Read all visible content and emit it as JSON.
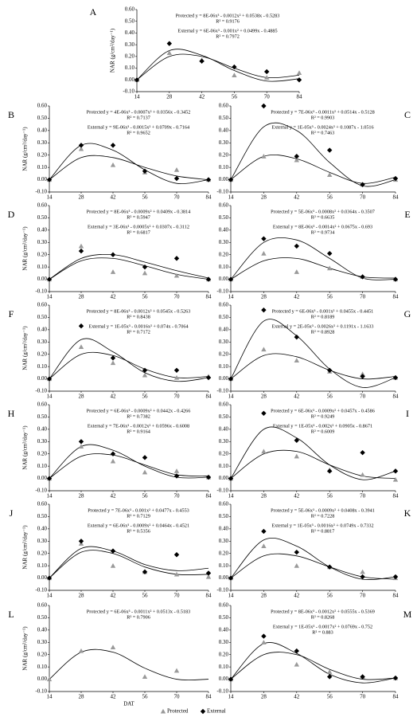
{
  "chart_data": {
    "type": "scatter",
    "y_label": "NAR (g/cm²/day⁻¹)",
    "x_label": "DAT",
    "xlim": [
      14,
      84
    ],
    "xticks": [
      14,
      28,
      42,
      56,
      70,
      84
    ],
    "ylim": [
      -0.1,
      0.6
    ],
    "yticks": [
      {
        "value": 0.6,
        "label": "0.60"
      },
      {
        "value": 0.5,
        "label": "0.50"
      },
      {
        "value": 0.4,
        "label": "0.40"
      },
      {
        "value": 0.3,
        "label": "0.30"
      },
      {
        "value": 0.2,
        "label": "0.20"
      },
      {
        "value": 0.1,
        "label": "0.10"
      },
      {
        "value": 0,
        "label": "0.00"
      },
      {
        "value": -0.1,
        "label": "-0.10"
      }
    ],
    "x": [
      14,
      28,
      42,
      56,
      70,
      84
    ],
    "series": [
      {
        "name": "Protected",
        "color": "#9a9a9a",
        "marker": "triangle"
      },
      {
        "name": "External",
        "color": "#000000",
        "marker": "diamond"
      }
    ],
    "panels": [
      {
        "label": "A",
        "equations": [
          "Protected y = 8E-06x³ - 0.0012x² + 0.0538x - 0.5283",
          "R² = 0.9176",
          "External y = 6E-06x³ - 0.001x² + 0.0499x - 0.4885",
          "R² = 0.7972"
        ],
        "values": [
          [
            0,
            0.23,
            0.17,
            0.04,
            0.02,
            0.06
          ],
          [
            0,
            0.31,
            0.16,
            0.11,
            0.07,
            0
          ]
        ],
        "fits": [
          [
            0,
            0.2,
            0.2,
            0.1,
            0.02,
            0.04
          ],
          [
            0,
            0.25,
            0.21,
            0.08,
            -0.01,
            0.01
          ]
        ]
      },
      {
        "label": "B",
        "equations": [
          "Protected y = 4E-06x³ - 0.0007x² + 0.0356x - 0.3452",
          "R² = 0.7137",
          "External y = 9E-06x³ - 0.0015x² + 0.0709x - 0.7164",
          "R² = 0.9652"
        ],
        "values": [
          [
            0,
            0.25,
            0.12,
            0.06,
            0.08,
            0
          ],
          [
            0,
            0.28,
            0.28,
            0.07,
            0.01,
            0
          ]
        ],
        "fits": [
          [
            0,
            0.18,
            0.18,
            0.1,
            0.03,
            0
          ],
          [
            0,
            0.28,
            0.24,
            0.08,
            -0.03,
            0
          ]
        ]
      },
      {
        "label": "C",
        "equations": [
          "Protected y = 7E-06x³ - 0.0011x² + 0.0514x - 0.5128",
          "R² = 0.9903",
          "External y = 1E-05x³ - 0.0024x² + 0.1087x - 1.0516",
          "R² = 0.7463"
        ],
        "values": [
          [
            0,
            0.19,
            0.16,
            0.04,
            -0.04,
            0
          ],
          [
            0,
            0.6,
            0.19,
            0.24,
            -0.04,
            0.01
          ]
        ],
        "fits": [
          [
            0,
            0.19,
            0.17,
            0.06,
            -0.03,
            0.02
          ],
          [
            0,
            0.43,
            0.4,
            0.14,
            -0.05,
            0
          ]
        ]
      },
      {
        "label": "D",
        "equations": [
          "Protected y = 8E-06x³ - 0.0009x² + 0.0409x - 0.3814",
          "R² = 0.5947",
          "External y = 3E-06x³ - 0.0005x² + 0.0307x - 0.3112",
          "R² = 0.6817"
        ],
        "values": [
          [
            0,
            0.27,
            0.06,
            0.05,
            0.03,
            0
          ],
          [
            0,
            0.23,
            0.2,
            0.1,
            0.17,
            0
          ]
        ],
        "fits": [
          [
            0,
            0.15,
            0.17,
            0.11,
            0.04,
            0
          ],
          [
            0,
            0.17,
            0.2,
            0.14,
            0.07,
            0.01
          ]
        ]
      },
      {
        "label": "E",
        "equations": [
          "Protected y = 5E-06x³ - 0.0008x² + 0.0364x - 0.3507",
          "R² = 0.6635",
          "External y = 8E-06x³ - 0.0014x² + 0.0675x - 0.693",
          "R² = 0.9734"
        ],
        "values": [
          [
            0,
            0.21,
            0.06,
            0.09,
            0.02,
            0
          ],
          [
            0,
            0.33,
            0.27,
            0.21,
            0.02,
            0
          ]
        ],
        "fits": [
          [
            0,
            0.15,
            0.17,
            0.09,
            0.02,
            0.01
          ],
          [
            0,
            0.3,
            0.32,
            0.17,
            0.01,
            0
          ]
        ]
      },
      {
        "label": "F",
        "equations": [
          "Protected y = 8E-06x³ - 0.0012x² + 0.0545x - 0.5263",
          "R² = 0.8438",
          "External y = 1E-05x³ - 0.0016x² + 0.074x - 0.7064",
          "R² = 0.7172"
        ],
        "values": [
          [
            0,
            0.26,
            0.13,
            0.03,
            0.01,
            0.02
          ],
          [
            0,
            0.43,
            0.17,
            0.07,
            0.07,
            0.01
          ]
        ],
        "fits": [
          [
            0,
            0.2,
            0.19,
            0.08,
            0.01,
            0.02
          ],
          [
            0,
            0.32,
            0.22,
            0.05,
            -0.02,
            0.01
          ]
        ]
      },
      {
        "label": "G",
        "equations": [
          "Protected y = 6E-06x³ - 0.001x² + 0.0455x - 0.4451",
          "R² = 0.8189",
          "External y = 2E-05x³ - 0.0026x² + 0.1191x - 1.1633",
          "R² = 0.8928"
        ],
        "values": [
          [
            0,
            0.24,
            0.15,
            0.06,
            0.04,
            0.01
          ],
          [
            0,
            0.56,
            0.34,
            0.07,
            0.02,
            0.01
          ]
        ],
        "fits": [
          [
            0,
            0.19,
            0.18,
            0.07,
            0,
            0.02
          ],
          [
            0,
            0.47,
            0.35,
            0.08,
            -0.07,
            0.01
          ]
        ]
      },
      {
        "label": "H",
        "equations": [
          "Protected y = 6E-06x³ - 0.0009x² + 0.0442x - 0.4266",
          "R² = 0.7382",
          "External y = 7E-06x³ - 0.0012x² + 0.0596x - 0.6008",
          "R² = 0.9164"
        ],
        "values": [
          [
            0,
            0.26,
            0.14,
            0.05,
            0.06,
            0.01
          ],
          [
            0,
            0.3,
            0.2,
            0.17,
            0.02,
            0.01
          ]
        ],
        "fits": [
          [
            0,
            0.18,
            0.19,
            0.11,
            0.03,
            0.02
          ],
          [
            0,
            0.26,
            0.23,
            0.1,
            0.01,
            0.01
          ]
        ]
      },
      {
        "label": "I",
        "equations": [
          "Protected y = 6E-06x³ - 0.0009x² + 0.0457x - 0.4586",
          "R² = 0.9249",
          "External y = 1E-05x³ - 0.002x² + 0.0905x - 0.8671",
          "R² = 0.6009"
        ],
        "values": [
          [
            0,
            0.22,
            0.18,
            0.07,
            0.03,
            -0.01
          ],
          [
            0,
            0.53,
            0.31,
            0.06,
            0.21,
            0.06
          ]
        ],
        "fits": [
          [
            0,
            0.2,
            0.22,
            0.11,
            0.02,
            0
          ],
          [
            0,
            0.4,
            0.33,
            0.11,
            -0.01,
            0.06
          ]
        ]
      },
      {
        "label": "J",
        "equations": [
          "Protected y = 7E-06x³ - 0.001x² + 0.0477x - 0.4553",
          "R² = 0.7129",
          "External y = 6E-06x³ - 0.0009x² + 0.0464x - 0.4521",
          "R² = 0.5356"
        ],
        "values": [
          [
            0,
            0.28,
            0.1,
            0.05,
            0.03,
            0.01
          ],
          [
            0,
            0.3,
            0.22,
            0.05,
            0.19,
            0.04
          ]
        ],
        "fits": [
          [
            0,
            0.21,
            0.2,
            0.09,
            0.03,
            0.03
          ],
          [
            0,
            0.24,
            0.22,
            0.11,
            0.06,
            0.08
          ]
        ]
      },
      {
        "label": "K",
        "equations": [
          "Protected y = 5E-06x³ - 0.0009x² + 0.0408x - 0.3941",
          "R² = 0.7228",
          "External y = 1E-05x³ - 0.0016x² + 0.0749x - 0.7332",
          "R² = 0.8817"
        ],
        "values": [
          [
            0,
            0.26,
            0.1,
            0.09,
            0.05,
            0
          ],
          [
            0,
            0.38,
            0.21,
            0.09,
            0.01,
            0.01
          ]
        ],
        "fits": [
          [
            0,
            0.18,
            0.18,
            0.09,
            0.01,
            -0.01
          ],
          [
            0,
            0.31,
            0.26,
            0.09,
            -0.01,
            0.01
          ]
        ]
      },
      {
        "label": "L",
        "equations": [
          "Protected y = 6E-06x³ - 0.0011x² + 0.0513x - 0.5183",
          "R² = 0.7906"
        ],
        "values": [
          [
            0,
            0.23,
            0.26,
            0.02,
            0.07,
            null
          ]
        ],
        "fits": [
          [
            0,
            0.22,
            0.22,
            0.09,
            0,
            0
          ]
        ]
      },
      {
        "label": "M",
        "equations": [
          "Protected y = 8E-06x³ - 0.0012x² + 0.0555x - 0.5369",
          "R² = 0.8268",
          "External y = 1E-05x³ - 0.0017x² + 0.0769x - 0.752",
          "R² = 0.883"
        ],
        "values": [
          [
            0,
            0.3,
            0.12,
            0.06,
            0.02,
            0.01
          ],
          [
            0,
            0.35,
            0.23,
            0.02,
            0.02,
            0.01
          ]
        ],
        "fits": [
          [
            0,
            0.2,
            0.2,
            0.08,
            0,
            0.01
          ],
          [
            0,
            0.29,
            0.21,
            0.04,
            -0.03,
            0.01
          ]
        ]
      }
    ]
  }
}
